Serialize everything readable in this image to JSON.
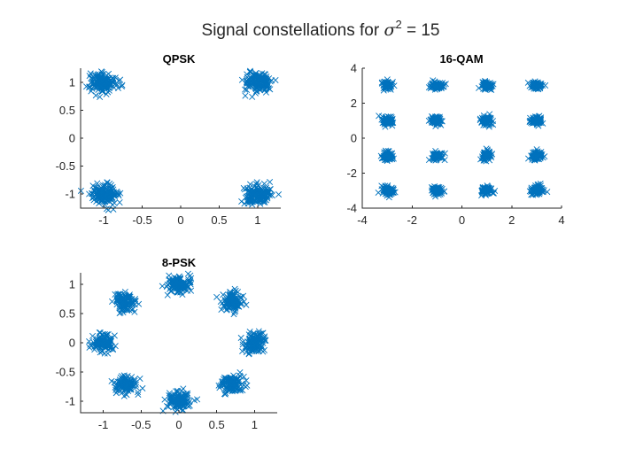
{
  "figure": {
    "title_prefix": "Signal constellations for ",
    "sigma_symbol": "σ",
    "exponent": "2",
    "title_suffix": " = 15"
  },
  "colors": {
    "marker": "#0072BD",
    "axis": "#262626",
    "background": "#ffffff"
  },
  "chart_data": [
    {
      "type": "scatter",
      "title": "QPSK",
      "marker": "x",
      "xlim": [
        -1.3,
        1.3
      ],
      "ylim": [
        -1.25,
        1.25
      ],
      "xticks": [
        -1,
        -0.5,
        0,
        0.5,
        1
      ],
      "xtick_labels": [
        "-1",
        "-0.5",
        "0",
        "0.5",
        "1"
      ],
      "yticks": [
        -1,
        -0.5,
        0,
        0.5,
        1
      ],
      "ytick_labels": [
        "-1",
        "-0.5",
        "0",
        "0.5",
        "1"
      ],
      "clusters": [
        [
          -1,
          1
        ],
        [
          1,
          1
        ],
        [
          -1,
          -1
        ],
        [
          1,
          -1
        ]
      ],
      "spread": 0.085,
      "points_per_cluster": 160
    },
    {
      "type": "scatter",
      "title": "16-QAM",
      "marker": "x",
      "xlim": [
        -4,
        4
      ],
      "ylim": [
        -4,
        4
      ],
      "xticks": [
        -4,
        -2,
        0,
        2,
        4
      ],
      "xtick_labels": [
        "-4",
        "-2",
        "0",
        "2",
        "4"
      ],
      "yticks": [
        -4,
        -2,
        0,
        2,
        4
      ],
      "ytick_labels": [
        "-4",
        "-2",
        "0",
        "2",
        "4"
      ],
      "clusters": [
        [
          -3,
          3
        ],
        [
          -1,
          3
        ],
        [
          1,
          3
        ],
        [
          3,
          3
        ],
        [
          -3,
          1
        ],
        [
          -1,
          1
        ],
        [
          1,
          1
        ],
        [
          3,
          1
        ],
        [
          -3,
          -1
        ],
        [
          -1,
          -1
        ],
        [
          1,
          -1
        ],
        [
          3,
          -1
        ],
        [
          -3,
          -3
        ],
        [
          -1,
          -3
        ],
        [
          1,
          -3
        ],
        [
          3,
          -3
        ]
      ],
      "spread": 0.12,
      "points_per_cluster": 70
    },
    {
      "type": "scatter",
      "title": "8-PSK",
      "marker": "x",
      "xlim": [
        -1.3,
        1.3
      ],
      "ylim": [
        -1.2,
        1.2
      ],
      "xticks": [
        -1,
        -0.5,
        0,
        0.5,
        1
      ],
      "xtick_labels": [
        "-1",
        "-0.5",
        "0",
        "0.5",
        "1"
      ],
      "yticks": [
        -1,
        -0.5,
        0,
        0.5,
        1
      ],
      "ytick_labels": [
        "-1",
        "-0.5",
        "0",
        "0.5",
        "1"
      ],
      "clusters": [
        [
          1,
          0
        ],
        [
          0.707,
          0.707
        ],
        [
          0,
          1
        ],
        [
          -0.707,
          0.707
        ],
        [
          -1,
          0
        ],
        [
          -0.707,
          -0.707
        ],
        [
          0,
          -1
        ],
        [
          0.707,
          -0.707
        ]
      ],
      "spread": 0.075,
      "points_per_cluster": 120
    }
  ]
}
